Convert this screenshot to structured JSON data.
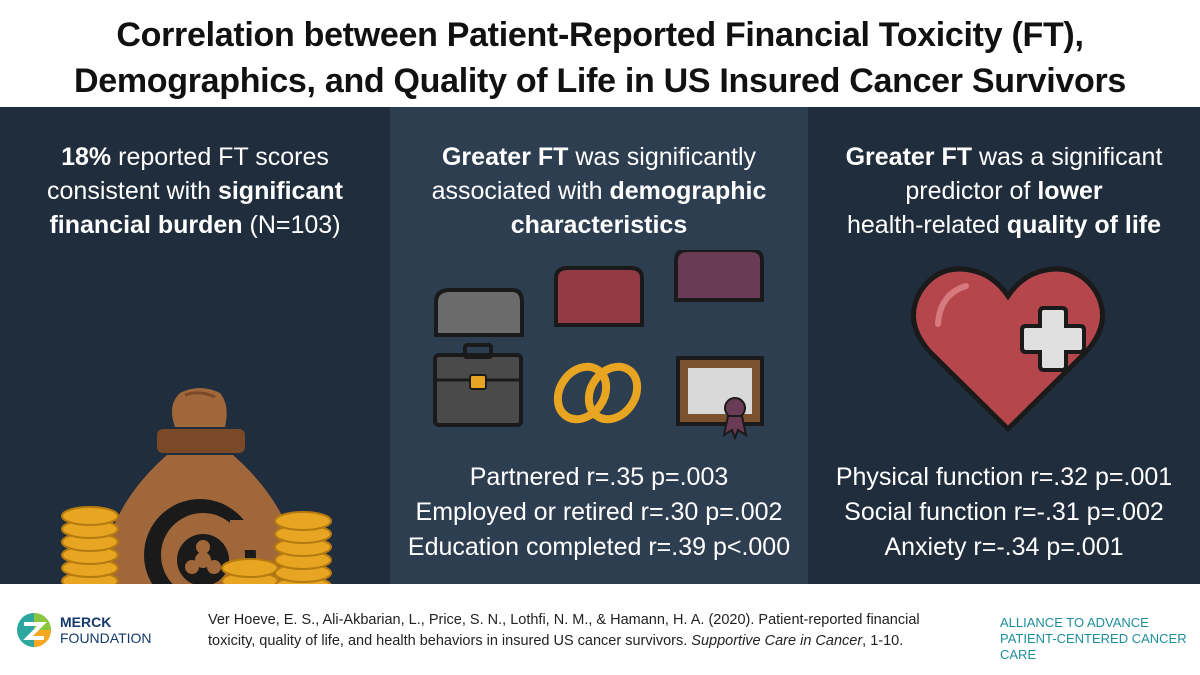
{
  "title": {
    "line1": "Correlation between Patient-Reported Financial Toxicity (FT),",
    "line2": "Demographics, and Quality of Life in US Insured Cancer Survivors"
  },
  "panel1": {
    "pct": "18%",
    "t1": " reported FT scores",
    "t2": "consistent with ",
    "b2": "significant",
    "b3": "financial burden",
    "t3": " (N=103)",
    "icon": "money-bag-biohazard-icon"
  },
  "panel2": {
    "b1": "Greater FT",
    "t1": " was significantly",
    "t2": "associated with ",
    "b2": "demographic",
    "b3": "characteristics",
    "stats": [
      "Partnered r=.35 p=.003",
      "Employed or retired r=.30 p=.002",
      "Education completed r=.39 p<.000"
    ],
    "icons": [
      "briefcase-icon",
      "wedding-rings-icon",
      "diploma-icon"
    ]
  },
  "panel3": {
    "b1": "Greater FT",
    "t1": " was a significant",
    "t2": "predictor of ",
    "b2": "lower",
    "t3": "health-related ",
    "b3": "quality of life",
    "stats": [
      "Physical function r=.32 p=.001",
      "Social function r=-.31 p=.002",
      "Anxiety r=-.34 p=.001"
    ],
    "icon": "heart-plus-icon"
  },
  "footer": {
    "merck1": "MERCK",
    "merck2": "FOUNDATION",
    "cite1": "Ver Hoeve, E. S., Ali-Akbarian, L., Price, S. N., Lothfi, N. M., & Hamann, H. A. (2020). Patient-reported financial",
    "cite2": "toxicity, quality of life, and health behaviors in insured US cancer survivors. ",
    "journal": "Supportive Care in Cancer",
    "cite3": ", 1-10.",
    "alliance1": "ALLIANCE TO ADVANCE",
    "alliance2": "PATIENT-CENTERED CANCER CARE"
  },
  "colors": {
    "dark_panel": "#1f2d3d",
    "mid_panel": "#2c3e50",
    "bag": "#a0673a",
    "coin": "#e7a522",
    "heart": "#b5464c",
    "cap_red": "#943a44",
    "cap_purple": "#6a3b54",
    "alliance": "#1e8e9b"
  }
}
